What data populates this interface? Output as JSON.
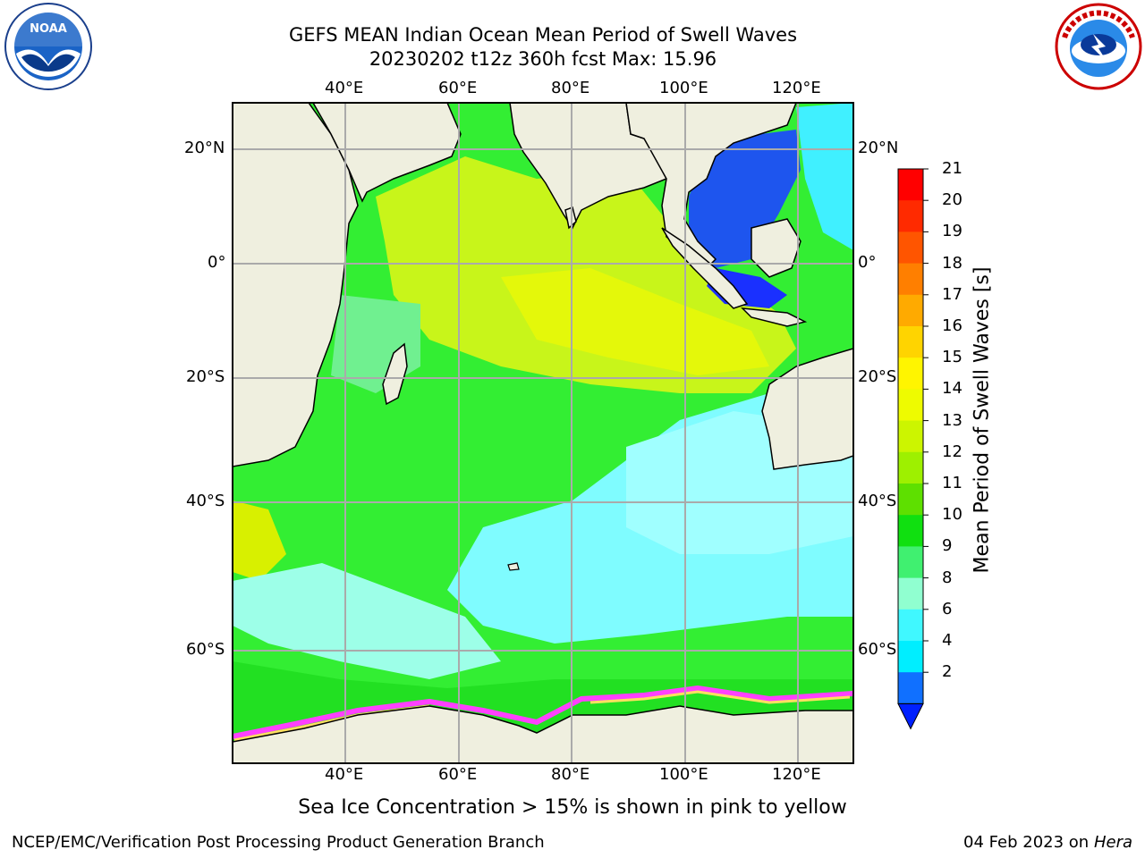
{
  "header": {
    "title_line1": "GEFS MEAN Indian Ocean Mean Period of Swell Waves",
    "title_line2": "20230202 t12z 360h fcst   Max: 15.96"
  },
  "logos": {
    "left": {
      "name": "noaa-logo",
      "text": "NOAA",
      "ring_text": "NATIONAL OCEANIC AND ATMOSPHERIC ADMINISTRATION · U.S. DEPARTMENT OF COMMERCE"
    },
    "right": {
      "name": "nws-logo",
      "ring_text": "NATIONAL WEATHER SERVICE"
    }
  },
  "map": {
    "lon_labels": [
      "40°E",
      "60°E",
      "80°E",
      "100°E",
      "120°E"
    ],
    "lat_labels": [
      "20°N",
      "0°",
      "20°S",
      "40°S",
      "60°S"
    ],
    "colors": {
      "land": "#efefdf",
      "ocean_main": "#33ee33"
    }
  },
  "colorbar": {
    "title": "Mean Period of Swell Waves [s]",
    "labels": [
      "21",
      "20",
      "19",
      "18",
      "17",
      "16",
      "15",
      "14",
      "13",
      "12",
      "11",
      "10",
      "9",
      "8",
      "6",
      "4",
      "2"
    ],
    "colors": [
      "#ff0000",
      "#ff2a00",
      "#ff5500",
      "#ff7f00",
      "#ffaa00",
      "#ffd400",
      "#fff500",
      "#eefb00",
      "#ccf500",
      "#9ef000",
      "#5ee000",
      "#10e010",
      "#40f070",
      "#90ffd0",
      "#40f8ff",
      "#00eeff",
      "#1070ff"
    ],
    "under_color": "#0020ff"
  },
  "note": "Sea Ice Concentration > 15% is shown in pink to yellow",
  "footer": {
    "left": "NCEP/EMC/Verification Post Processing Product Generation Branch",
    "right_date": "04 Feb 2023 on",
    "right_host": "Hera"
  }
}
